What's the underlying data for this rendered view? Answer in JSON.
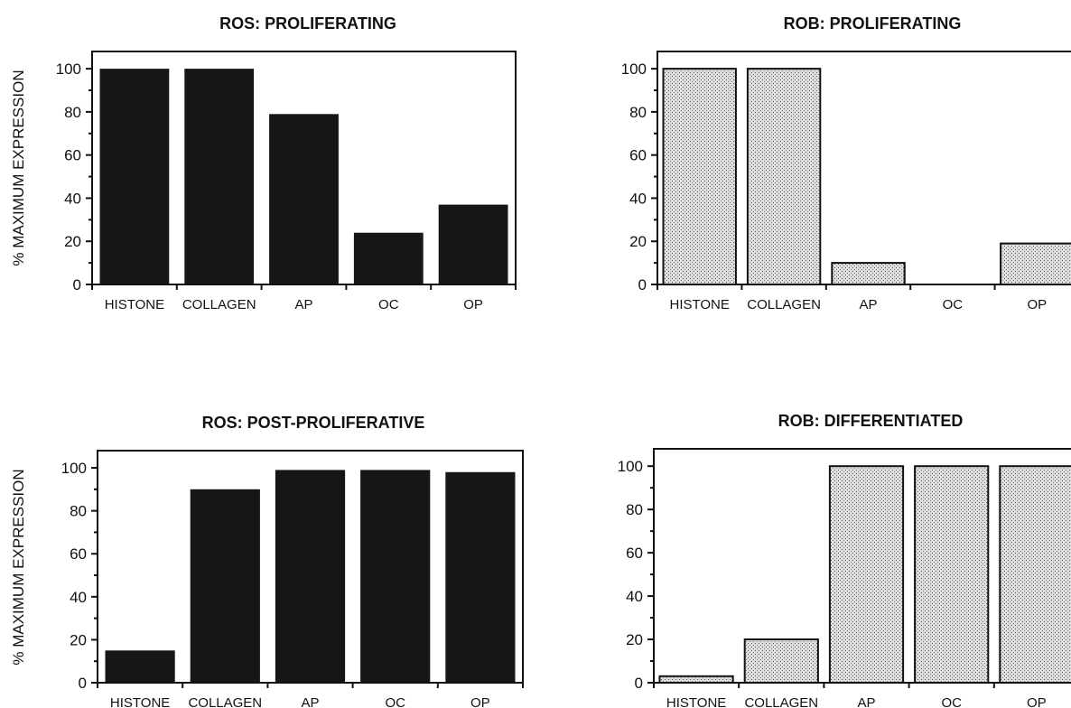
{
  "chart_data": [
    {
      "type": "bar",
      "title": "ROS:  PROLIFERATING",
      "ylabel": "% MAXIMUM EXPRESSION",
      "xlabel": "",
      "categories": [
        "HISTONE",
        "COLLAGEN",
        "AP",
        "OC",
        "OP"
      ],
      "values": [
        100,
        100,
        79,
        24,
        37
      ],
      "ylim": [
        0,
        108
      ],
      "yticks": [
        "0",
        "20",
        "40",
        "60",
        "80",
        "100"
      ],
      "bar_fill": "#161616"
    },
    {
      "type": "bar",
      "title": "ROB:  PROLIFERATING",
      "ylabel": "",
      "xlabel": "",
      "categories": [
        "HISTONE",
        "COLLAGEN",
        "AP",
        "OC",
        "OP"
      ],
      "values": [
        100,
        100,
        10,
        0,
        19
      ],
      "ylim": [
        0,
        108
      ],
      "yticks": [
        "0",
        "20",
        "40",
        "60",
        "80",
        "100"
      ],
      "bar_fill": "#c9c9c9"
    },
    {
      "type": "bar",
      "title": "ROS:  POST-PROLIFERATIVE",
      "ylabel": "% MAXIMUM EXPRESSION",
      "xlabel": "",
      "categories": [
        "HISTONE",
        "COLLAGEN",
        "AP",
        "OC",
        "OP"
      ],
      "values": [
        15,
        90,
        99,
        99,
        98
      ],
      "ylim": [
        0,
        108
      ],
      "yticks": [
        "0",
        "20",
        "40",
        "60",
        "80",
        "100"
      ],
      "bar_fill": "#161616"
    },
    {
      "type": "bar",
      "title": "ROB:  DIFFERENTIATED",
      "ylabel": "",
      "xlabel": "",
      "categories": [
        "HISTONE",
        "COLLAGEN",
        "AP",
        "OC",
        "OP"
      ],
      "values": [
        3,
        20,
        100,
        100,
        100
      ],
      "ylim": [
        0,
        108
      ],
      "yticks": [
        "0",
        "20",
        "40",
        "60",
        "80",
        "100"
      ],
      "bar_fill": "#c9c9c9"
    }
  ]
}
